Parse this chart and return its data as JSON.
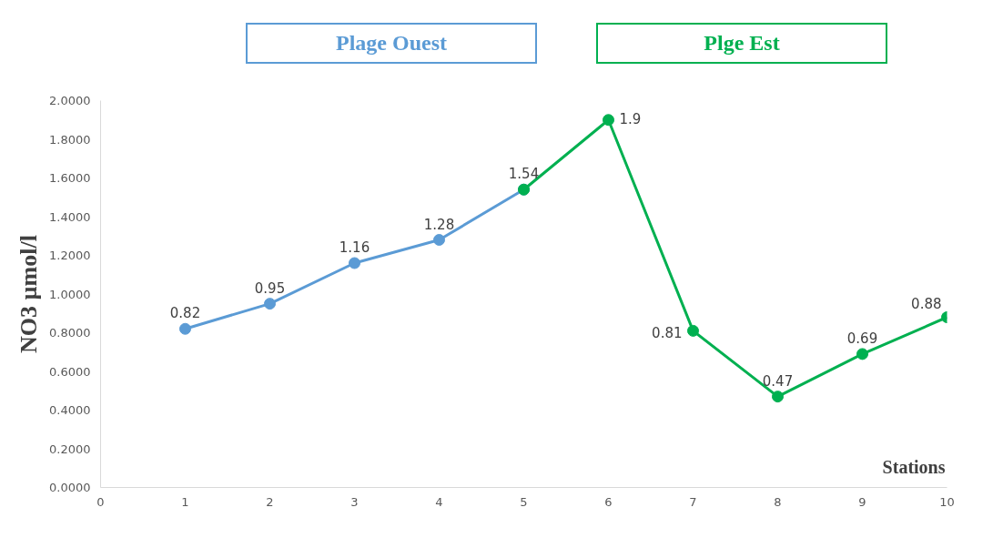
{
  "chart_data": {
    "type": "line",
    "xlabel": "Stations",
    "ylabel": "NO3 µmol/l",
    "xlim": [
      0,
      10
    ],
    "xticks": [
      0,
      1,
      2,
      3,
      4,
      5,
      6,
      7,
      8,
      9,
      10
    ],
    "ylim": [
      0,
      2
    ],
    "yticks": [
      {
        "value": 0,
        "label": "0.0000"
      },
      {
        "value": 0.2,
        "label": "0.2000"
      },
      {
        "value": 0.4,
        "label": "0.4000"
      },
      {
        "value": 0.6,
        "label": "0.6000"
      },
      {
        "value": 0.8,
        "label": "0.8000"
      },
      {
        "value": 1.0,
        "label": "1.0000"
      },
      {
        "value": 1.2,
        "label": "1.2000"
      },
      {
        "value": 1.4,
        "label": "1.4000"
      },
      {
        "value": 1.6,
        "label": "1.6000"
      },
      {
        "value": 1.8,
        "label": "1.8000"
      },
      {
        "value": 2.0,
        "label": "2.0000"
      }
    ],
    "grid": false,
    "marker": "circle",
    "line_style": "solid",
    "series": [
      {
        "name": "Plage Ouest",
        "color": "#5b9bd5",
        "x": [
          1,
          2,
          3,
          4,
          5
        ],
        "values": [
          0.82,
          0.95,
          1.16,
          1.28,
          1.54
        ],
        "value_labels": [
          "0.82",
          "0.95",
          "1.16",
          "1.28",
          "1.54"
        ]
      },
      {
        "name": "Plge Est",
        "color": "#00b050",
        "x": [
          5,
          6,
          7,
          8,
          9,
          10
        ],
        "values": [
          1.54,
          1.9,
          0.81,
          0.47,
          0.69,
          0.88
        ],
        "value_labels": [
          null,
          "1.9",
          "0.81",
          "0.47",
          "0.69",
          "0.88"
        ]
      }
    ]
  }
}
